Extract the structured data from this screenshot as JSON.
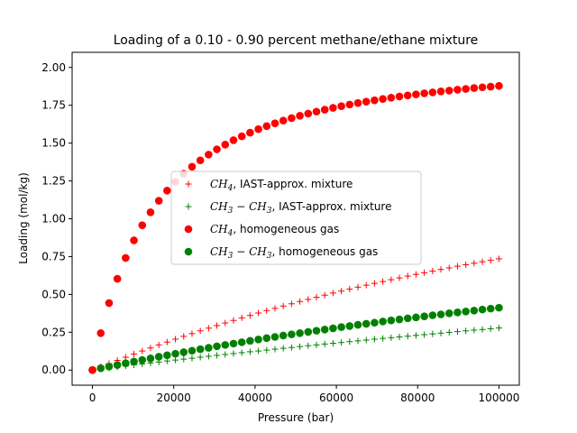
{
  "chart_data": {
    "type": "scatter",
    "title": "Loading of a 0.10 - 0.90 percent methane/ethane mixture",
    "xlabel": "Pressure (bar)",
    "ylabel": "Loading (mol/kg)",
    "xlim": [
      -5000,
      105000
    ],
    "ylim": [
      -0.1,
      2.1
    ],
    "x_ticks": [
      0,
      20000,
      40000,
      60000,
      80000,
      100000
    ],
    "x_tick_labels": [
      "0",
      "20000",
      "40000",
      "60000",
      "80000",
      "100000"
    ],
    "y_ticks": [
      0.0,
      0.25,
      0.5,
      0.75,
      1.0,
      1.25,
      1.5,
      1.75,
      2.0
    ],
    "y_tick_labels": [
      "0.00",
      "0.25",
      "0.50",
      "0.75",
      "1.00",
      "1.25",
      "1.50",
      "1.75",
      "2.00"
    ],
    "grid": false,
    "legend_position": "center",
    "x": [
      0,
      2040.8,
      4081.6,
      6122.4,
      8163.3,
      10204.1,
      12244.9,
      14285.7,
      16326.5,
      18367.3,
      20408.2,
      22449.0,
      24489.8,
      26530.6,
      28571.4,
      30612.2,
      32653.1,
      34693.9,
      36734.7,
      38775.5,
      40816.3,
      42857.1,
      44898.0,
      46938.8,
      48979.6,
      51020.4,
      53061.2,
      55102.0,
      57142.9,
      59183.7,
      61224.5,
      63265.3,
      65306.1,
      67346.9,
      69387.8,
      71428.6,
      73469.4,
      75510.2,
      77551.0,
      79591.8,
      81632.7,
      83673.5,
      85714.3,
      87755.1,
      89795.9,
      91836.7,
      93877.6,
      95918.4,
      97959.2,
      100000
    ],
    "series": [
      {
        "name": "CH4, IAST-approx. mixture",
        "marker": "plus",
        "color": "#ff0000",
        "values": [
          0.0,
          0.022,
          0.043,
          0.064,
          0.085,
          0.106,
          0.126,
          0.146,
          0.166,
          0.185,
          0.204,
          0.223,
          0.241,
          0.259,
          0.277,
          0.294,
          0.311,
          0.328,
          0.345,
          0.361,
          0.377,
          0.393,
          0.408,
          0.423,
          0.438,
          0.453,
          0.467,
          0.481,
          0.495,
          0.509,
          0.522,
          0.535,
          0.548,
          0.561,
          0.573,
          0.585,
          0.597,
          0.609,
          0.621,
          0.632,
          0.643,
          0.654,
          0.665,
          0.675,
          0.686,
          0.696,
          0.706,
          0.716,
          0.725,
          0.735
        ]
      },
      {
        "name": "CH3-CH3, IAST-approx. mixture",
        "marker": "plus",
        "color": "#008000",
        "values": [
          0.0,
          0.007,
          0.014,
          0.02,
          0.027,
          0.034,
          0.04,
          0.047,
          0.053,
          0.06,
          0.066,
          0.072,
          0.078,
          0.085,
          0.091,
          0.097,
          0.103,
          0.109,
          0.115,
          0.121,
          0.126,
          0.132,
          0.138,
          0.144,
          0.149,
          0.155,
          0.161,
          0.166,
          0.172,
          0.177,
          0.182,
          0.188,
          0.193,
          0.198,
          0.204,
          0.209,
          0.214,
          0.219,
          0.224,
          0.229,
          0.234,
          0.239,
          0.244,
          0.249,
          0.254,
          0.259,
          0.264,
          0.268,
          0.273,
          0.278
        ]
      },
      {
        "name": "CH4, homogeneous gas",
        "marker": "circle",
        "color": "#ff0000",
        "values": [
          0.0,
          0.244,
          0.443,
          0.603,
          0.741,
          0.857,
          0.957,
          1.043,
          1.119,
          1.186,
          1.244,
          1.297,
          1.344,
          1.386,
          1.424,
          1.459,
          1.49,
          1.519,
          1.545,
          1.569,
          1.592,
          1.612,
          1.631,
          1.649,
          1.665,
          1.681,
          1.695,
          1.708,
          1.721,
          1.733,
          1.744,
          1.755,
          1.765,
          1.774,
          1.783,
          1.792,
          1.8,
          1.808,
          1.815,
          1.822,
          1.829,
          1.835,
          1.842,
          1.847,
          1.853,
          1.858,
          1.864,
          1.869,
          1.873,
          1.878
        ]
      },
      {
        "name": "CH3-CH3, homogeneous gas",
        "marker": "circle",
        "color": "#008000",
        "values": [
          0.0,
          0.012,
          0.023,
          0.034,
          0.045,
          0.056,
          0.067,
          0.077,
          0.088,
          0.098,
          0.108,
          0.118,
          0.128,
          0.138,
          0.147,
          0.157,
          0.166,
          0.175,
          0.184,
          0.193,
          0.202,
          0.211,
          0.219,
          0.228,
          0.236,
          0.244,
          0.252,
          0.26,
          0.268,
          0.276,
          0.284,
          0.291,
          0.299,
          0.306,
          0.313,
          0.321,
          0.328,
          0.335,
          0.342,
          0.348,
          0.355,
          0.362,
          0.368,
          0.375,
          0.381,
          0.387,
          0.393,
          0.4,
          0.406,
          0.412
        ]
      }
    ],
    "legend": [
      {
        "base": "CH",
        "sub": "4",
        "tail": ", IAST-approx. mixture"
      },
      {
        "base": "CH",
        "sub": "3",
        "mid": " − CH",
        "sub2": "3",
        "tail": ", IAST-approx. mixture"
      },
      {
        "base": "CH",
        "sub": "4",
        "tail": ", homogeneous gas"
      },
      {
        "base": "CH",
        "sub": "3",
        "mid": " − CH",
        "sub2": "3",
        "tail": ", homogeneous gas"
      }
    ]
  }
}
